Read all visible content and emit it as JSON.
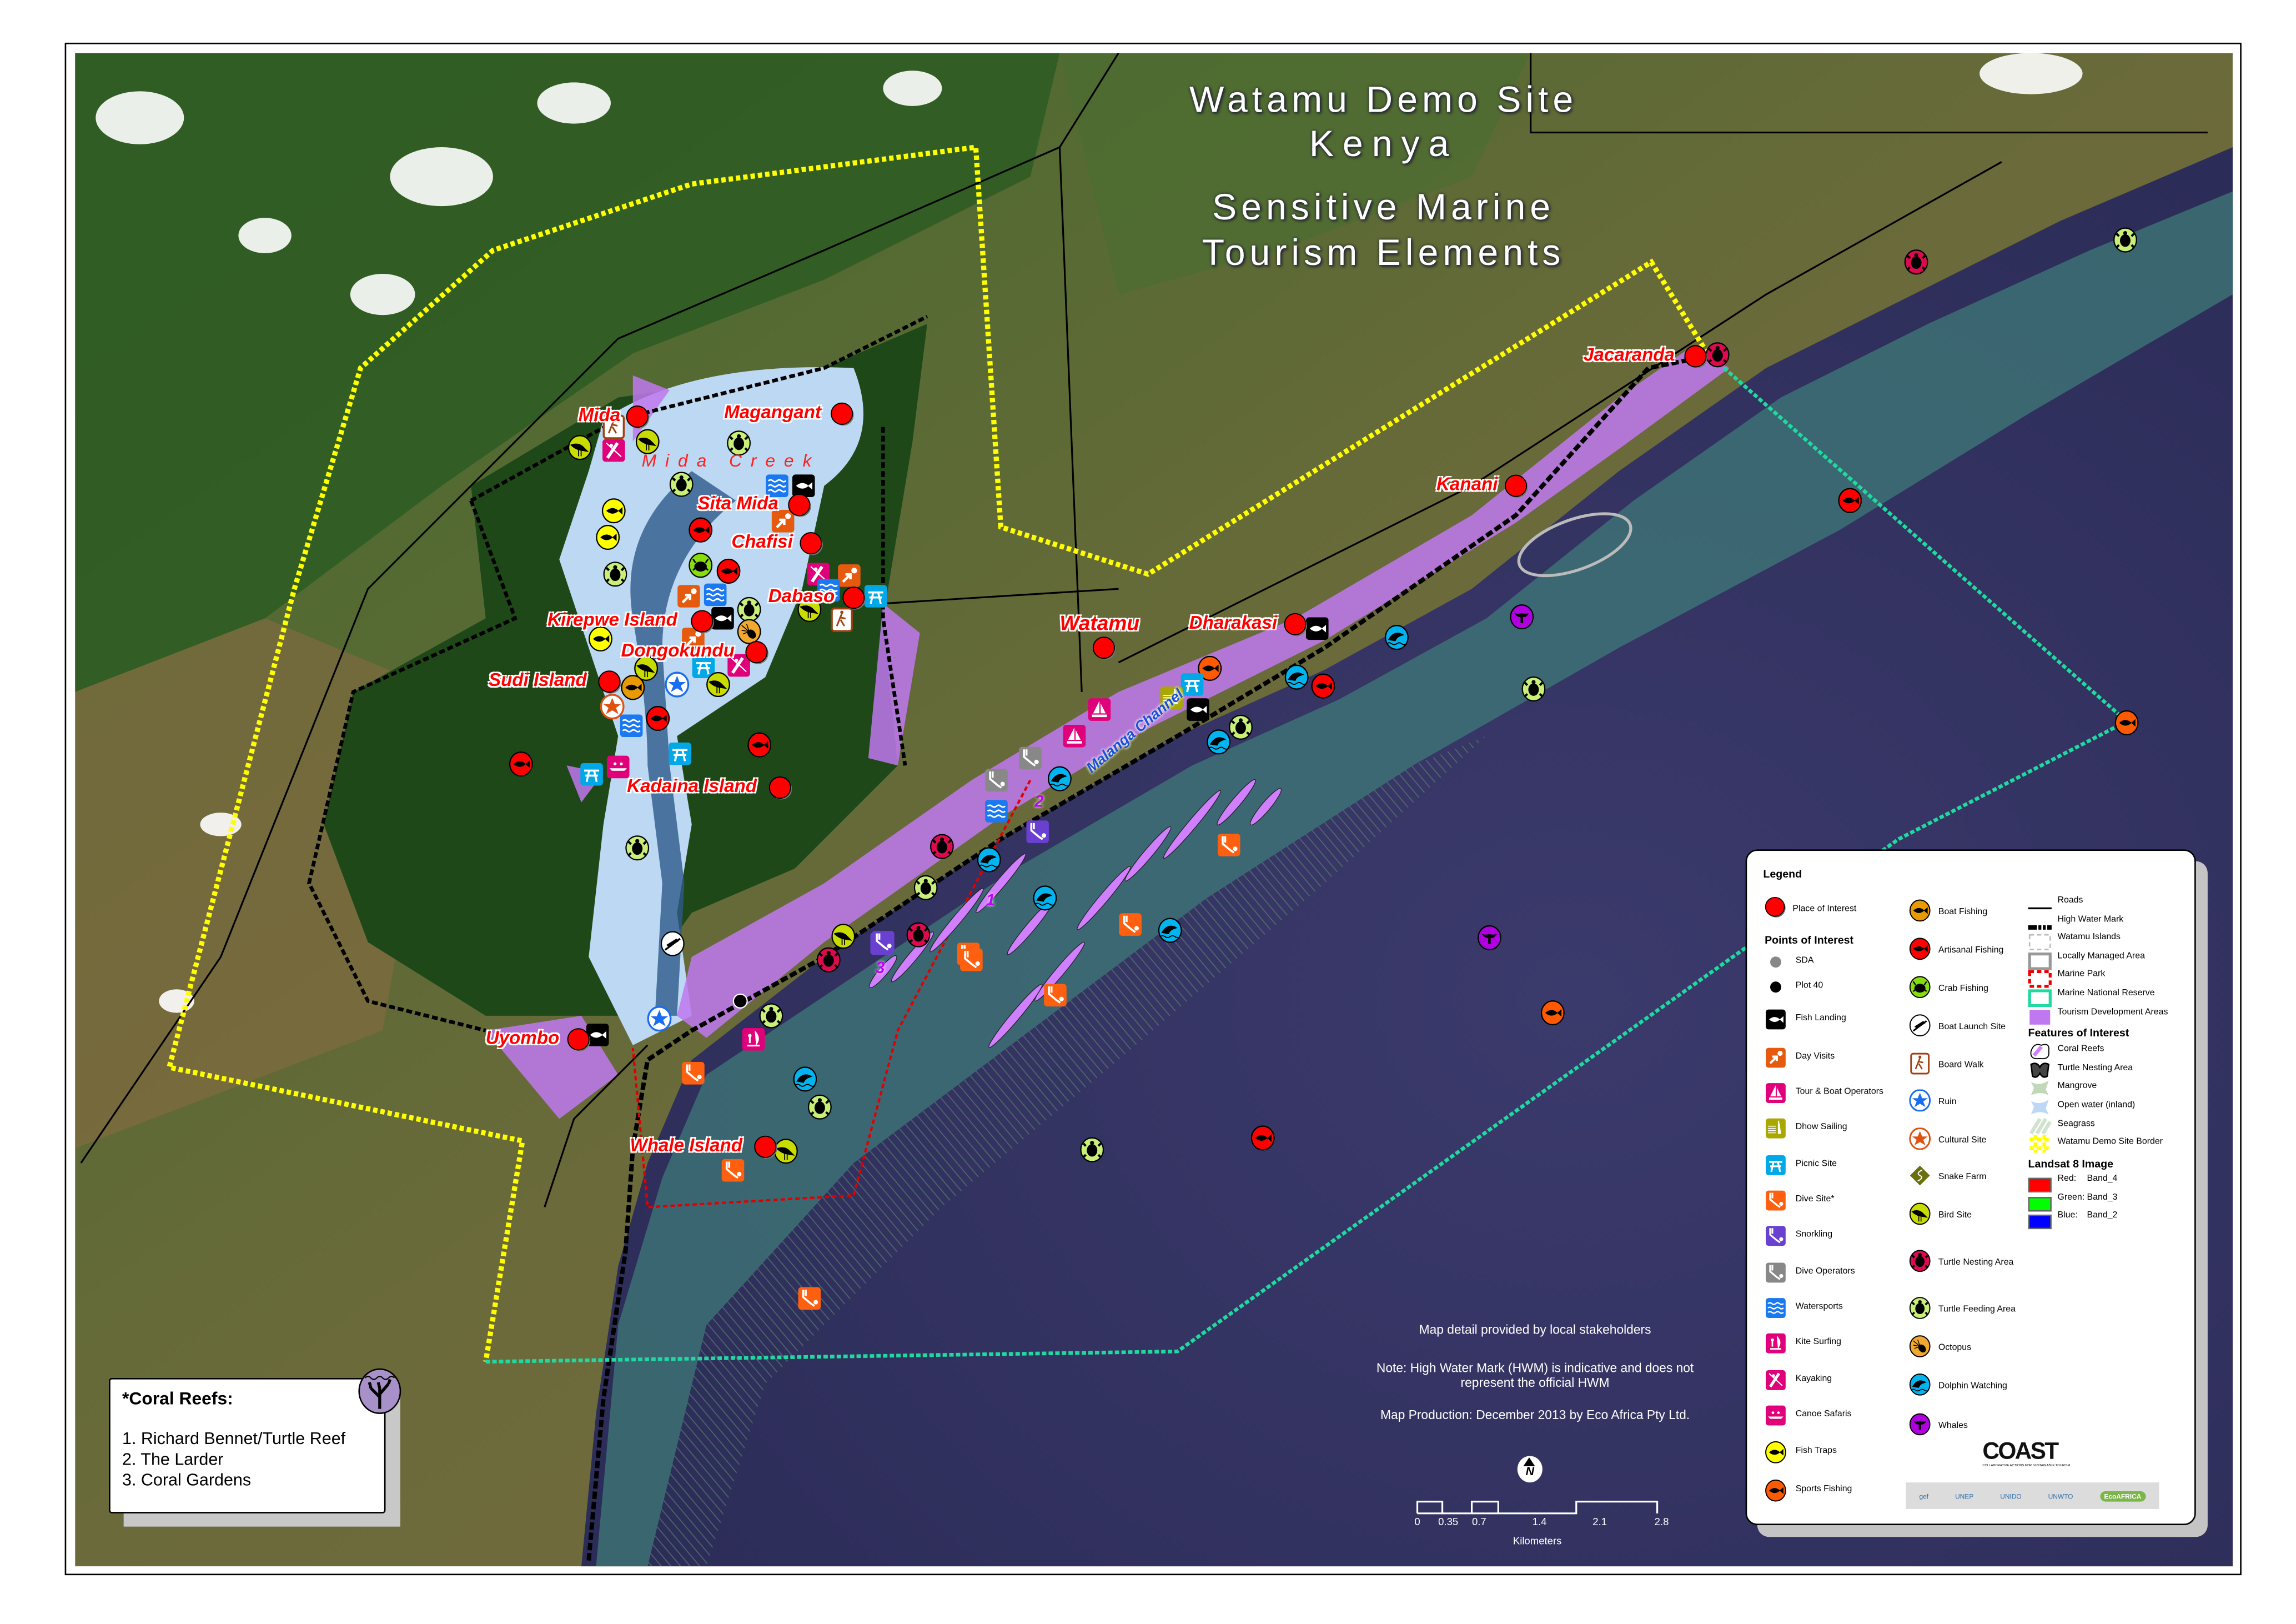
{
  "title": {
    "line1": "Watamu Demo Site",
    "line2": "Kenya",
    "line3": "Sensitive Marine",
    "line4": "Tourism Elements"
  },
  "places": [
    {
      "name": "Mida"
    },
    {
      "name": "Magangant"
    },
    {
      "name": "Sita Mida"
    },
    {
      "name": "Chafisi"
    },
    {
      "name": "Dabaso"
    },
    {
      "name": "Kirepwe Island"
    },
    {
      "name": "Dongokundu"
    },
    {
      "name": "Sudi Island"
    },
    {
      "name": "Kadaina Island"
    },
    {
      "name": "Uyombo"
    },
    {
      "name": "Whale Island"
    },
    {
      "name": "Watamu"
    },
    {
      "name": "Dharakasi"
    },
    {
      "name": "Kanani"
    },
    {
      "name": "Jacaranda"
    }
  ],
  "water_labels": {
    "creek": "Mida Creek",
    "channel": "Malanga Channel"
  },
  "reef_numbers": [
    "1",
    "2",
    "3"
  ],
  "notes": {
    "stakeholders": "Map detail provided by local stakeholders",
    "hwm": "Note: High Water Mark (HWM) is indicative and does not represent the official HWM",
    "production": "Map Production: December 2013 by Eco Africa Pty Ltd."
  },
  "north_arrow": "N",
  "scale_bar": {
    "ticks": [
      "0",
      "0.35",
      "0.7",
      "1.4",
      "2.1",
      "2.8"
    ],
    "unit": "Kilometers"
  },
  "coral_reefs_box": {
    "title": "*Coral Reefs:",
    "items": [
      "1. Richard Bennet/Turtle Reef",
      "2. The Larder",
      "3. Coral Gardens"
    ]
  },
  "legend": {
    "title": "Legend",
    "place_of_interest": "Place of Interest",
    "points_heading": "Points of Interest",
    "col1": [
      {
        "label": "SDA",
        "icon": "sda"
      },
      {
        "label": "Plot 40",
        "icon": "plot40"
      },
      {
        "label": "Fish Landing",
        "icon": "fish-landing"
      },
      {
        "label": "Day Visits",
        "icon": "day-visits"
      },
      {
        "label": "Tour & Boat Operators",
        "icon": "tour-boat"
      },
      {
        "label": "Dhow Sailing",
        "icon": "dhow"
      },
      {
        "label": "Picnic Site",
        "icon": "picnic"
      },
      {
        "label": "Dive Site*",
        "icon": "dive-site"
      },
      {
        "label": "Snorkling",
        "icon": "snorkling"
      },
      {
        "label": "Dive Operators",
        "icon": "dive-operators"
      },
      {
        "label": "Watersports",
        "icon": "watersports"
      },
      {
        "label": "Kite Surfing",
        "icon": "kite-surfing"
      },
      {
        "label": "Kayaking",
        "icon": "kayaking"
      },
      {
        "label": "Canoe Safaris",
        "icon": "canoe"
      },
      {
        "label": "Fish Traps",
        "icon": "fish-traps"
      },
      {
        "label": "Sports Fishing",
        "icon": "sports-fishing"
      }
    ],
    "col2": [
      {
        "label": "Boat Fishing",
        "icon": "boat-fishing"
      },
      {
        "label": "Artisanal Fishing",
        "icon": "artisanal"
      },
      {
        "label": "Crab Fishing",
        "icon": "crab"
      },
      {
        "label": "Boat Launch Site",
        "icon": "boat-launch"
      },
      {
        "label": "Board Walk",
        "icon": "board-walk"
      },
      {
        "label": "Ruin",
        "icon": "ruin"
      },
      {
        "label": "Cultural Site",
        "icon": "cultural"
      },
      {
        "label": "Snake Farm",
        "icon": "snake-farm"
      },
      {
        "label": "Bird Site",
        "icon": "bird"
      },
      {
        "label": "Turtle Nesting Area",
        "icon": "turtle-nesting"
      },
      {
        "label": "Turtle Feeding Area",
        "icon": "turtle-feeding"
      },
      {
        "label": "Octopus",
        "icon": "octopus"
      },
      {
        "label": "Dolphin Watching",
        "icon": "dolphin"
      },
      {
        "label": "Whales",
        "icon": "whales"
      }
    ],
    "lines": [
      {
        "label": "Roads",
        "style": "road"
      },
      {
        "label": "High Water Mark",
        "style": "hwm"
      },
      {
        "label": "Watamu Islands",
        "style": "islands"
      },
      {
        "label": "Locally Managed Area",
        "style": "lma"
      },
      {
        "label": "Marine Park",
        "style": "park"
      },
      {
        "label": "Marine National Reserve",
        "style": "reserve"
      },
      {
        "label": "Tourism Development Areas",
        "style": "tda"
      }
    ],
    "features_heading": "Features of Interest",
    "features": [
      {
        "label": "Coral Reefs",
        "style": "coral"
      },
      {
        "label": "Turtle Nesting Area",
        "style": "turtle-area"
      },
      {
        "label": "Mangrove",
        "style": "mangrove"
      },
      {
        "label": "Open water (inland)",
        "style": "openwater"
      },
      {
        "label": "Seagrass",
        "style": "seagrass"
      },
      {
        "label": "Watamu Demo Site Border",
        "style": "border"
      }
    ],
    "landsat_heading": "Landsat 8 Image",
    "bands": [
      {
        "label": "Red:",
        "value": "Band_4",
        "color": "#ff0000"
      },
      {
        "label": "Green:",
        "value": "Band_3",
        "color": "#00ff00"
      },
      {
        "label": "Blue:",
        "value": "Band_2",
        "color": "#0000ff"
      }
    ]
  },
  "logos": {
    "coast": "COAST",
    "coast_tagline": "COLLABORATIVE ACTIONS FOR SUSTAINABLE TOURISM",
    "partners": [
      "gef",
      "UNEP",
      "UNIDO",
      "UNWTO",
      "EcoAFRICA"
    ]
  },
  "colors": {
    "place": "#ff0000",
    "fish-traps": "#ffff00",
    "sports-fishing": "#ff5a00",
    "boat-fishing": "#e89a00",
    "artisanal": "#ff0000",
    "crab": "#88dd11",
    "bird": "#c8dc00",
    "turtle-nesting": "#dd0a50",
    "turtle-feeding": "#c8ef78",
    "octopus": "#f0a830",
    "dolphin": "#00b4f0",
    "whales": "#b000e0",
    "fish-landing": "#000000",
    "day-visits": "#e65a10",
    "tour-boat": "#e0007a",
    "dhow": "#a8a800",
    "picnic": "#00a8e8",
    "dive-site": "#ff6010",
    "snorkling": "#6a40d0",
    "dive-operators": "#888888",
    "watersports": "#1a78f0",
    "kite-surfing": "#e0007a",
    "kayaking": "#e0007a",
    "canoe": "#e0007a",
    "ruin": "#1a6cf0",
    "cultural": "#e05010",
    "snake-farm": "#6a7010",
    "board-walk": "#a04010",
    "tourism-area": "#c078f0",
    "ocean": "#2f2e5e",
    "demo-border": "#ffff00",
    "reserve-line": "#20d8a0"
  }
}
